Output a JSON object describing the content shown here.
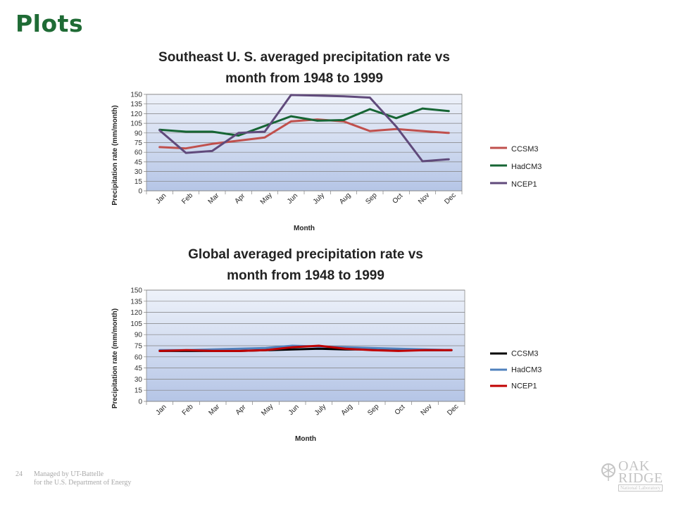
{
  "slide": {
    "title": "Plots",
    "page_number": "24",
    "footer_line1": "Managed by UT-Battelle",
    "footer_line2": "for the U.S. Department of Energy",
    "logo_line1": "OAK",
    "logo_line2": "RIDGE",
    "logo_line3": "National Laboratory"
  },
  "chart_data": [
    {
      "type": "line",
      "title_lines": [
        "Southeast U. S. averaged precipitation rate vs",
        "month from 1948 to 1999"
      ],
      "xlabel": "Month",
      "ylabel": "Precipitation rate (mm/month)",
      "categories": [
        "Jan",
        "Feb",
        "Mar",
        "Apr",
        "May",
        "Jun",
        "July",
        "Aug",
        "Sep",
        "Oct",
        "Nov",
        "Dec"
      ],
      "yticks": [
        0,
        15,
        30,
        45,
        60,
        75,
        90,
        105,
        120,
        135,
        150
      ],
      "ylim": [
        0,
        150
      ],
      "grid": true,
      "legend_position": "right",
      "series": [
        {
          "name": "CCSM3",
          "color": "#c0504d",
          "values": [
            68,
            66,
            73,
            78,
            83,
            108,
            111,
            108,
            93,
            96,
            93,
            90
          ]
        },
        {
          "name": "HadCM3",
          "color": "#166534",
          "values": [
            95,
            92,
            92,
            86,
            101,
            116,
            109,
            110,
            127,
            113,
            128,
            124
          ]
        },
        {
          "name": "NCEP1",
          "color": "#604a7b",
          "values": [
            94,
            59,
            62,
            90,
            92,
            149,
            148,
            147,
            145,
            100,
            46,
            49
          ]
        }
      ]
    },
    {
      "type": "line",
      "title_lines": [
        "Global averaged precipitation rate vs",
        "month from 1948 to 1999"
      ],
      "xlabel": "Month",
      "ylabel": "Precipitation rate (mm/month)",
      "categories": [
        "Jan",
        "Feb",
        "Mar",
        "Apr",
        "May",
        "Jun",
        "July",
        "Aug",
        "Sep",
        "Oct",
        "Nov",
        "Dec"
      ],
      "yticks": [
        0,
        15,
        30,
        45,
        60,
        75,
        90,
        105,
        120,
        135,
        150
      ],
      "ylim": [
        0,
        150
      ],
      "grid": true,
      "legend_position": "right",
      "series": [
        {
          "name": "CCSM3",
          "color": "#000000",
          "values": [
            68,
            68,
            68,
            68,
            69,
            70,
            71,
            70,
            70,
            69,
            69,
            69
          ]
        },
        {
          "name": "HadCM3",
          "color": "#4f81bd",
          "values": [
            69,
            69,
            70,
            71,
            72,
            75,
            74,
            73,
            72,
            71,
            70,
            69
          ]
        },
        {
          "name": "NCEP1",
          "color": "#c00000",
          "values": [
            68,
            69,
            68,
            68,
            69,
            73,
            75,
            71,
            69,
            68,
            69,
            69
          ]
        }
      ]
    }
  ]
}
